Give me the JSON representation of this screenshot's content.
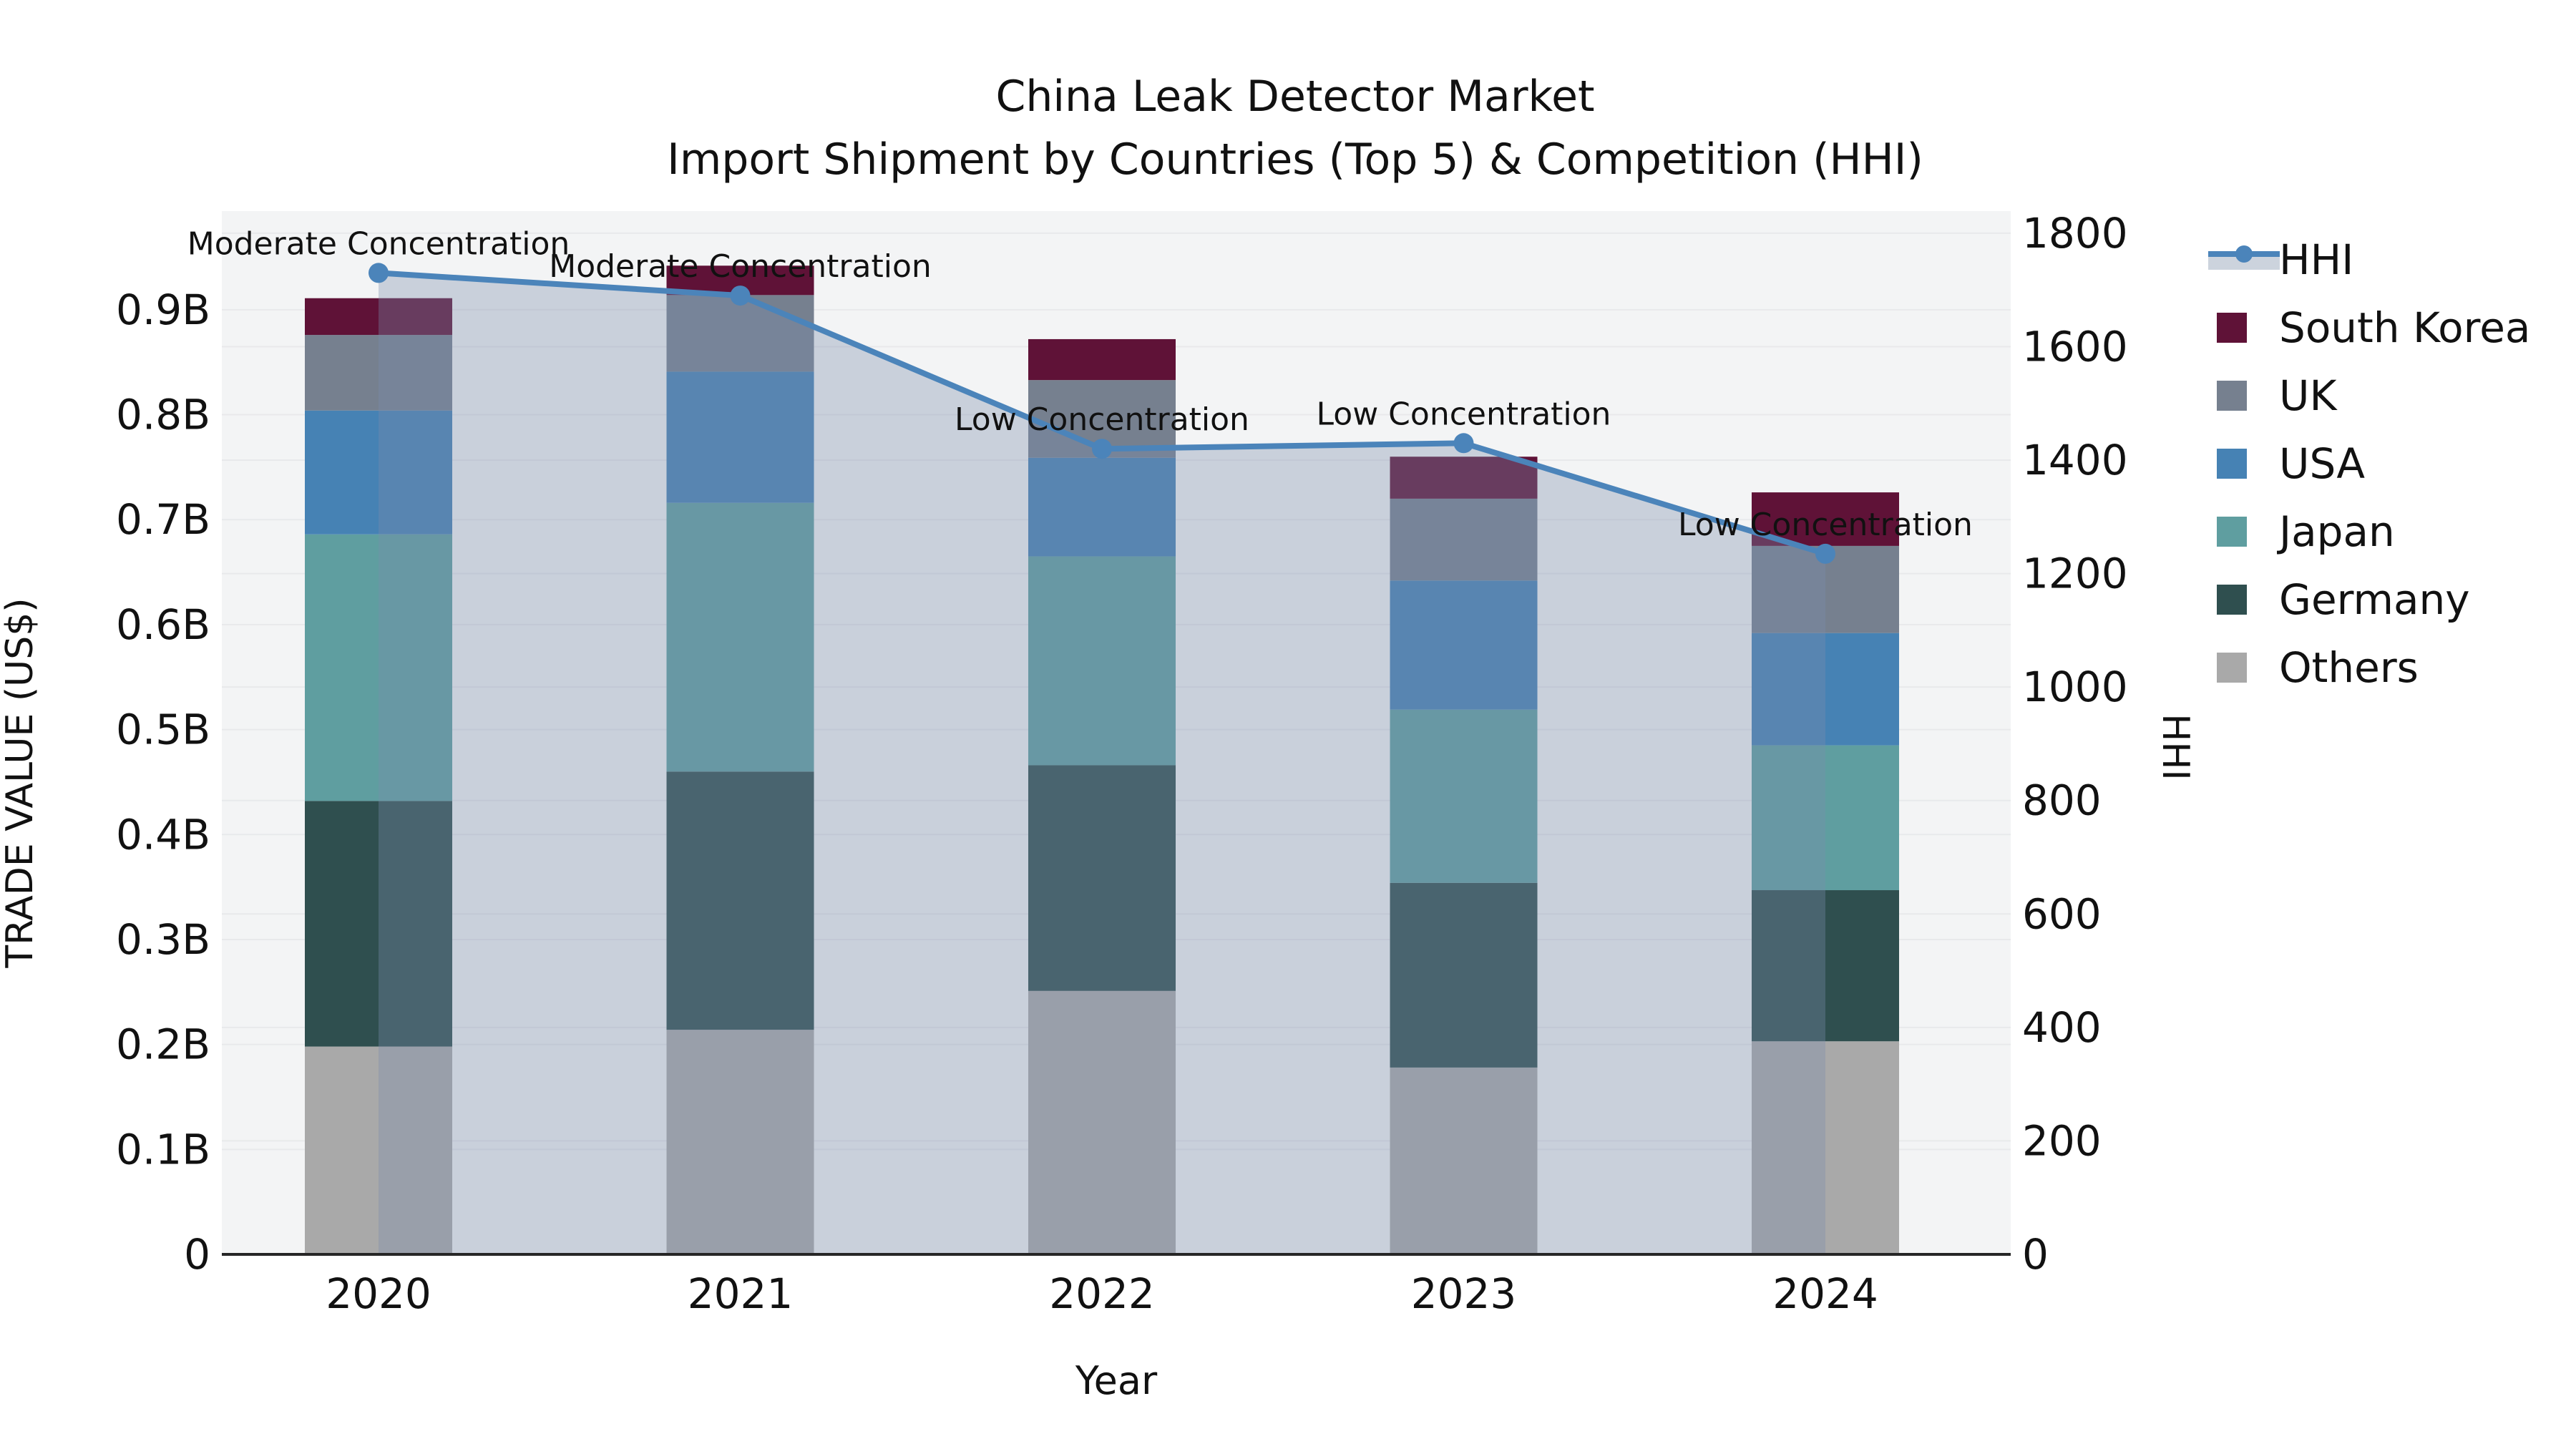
{
  "title": {
    "line1": "China Leak Detector Market",
    "line2": "Import Shipment by Countries (Top 5) & Competition (HHI)"
  },
  "axes": {
    "y_left_label": "TRADE VALUE (US$)",
    "y_right_label": "HHI",
    "x_label": "Year"
  },
  "legend": {
    "items": [
      {
        "label": "HHI",
        "type": "line",
        "color": "#4b84ba",
        "band_color": "#ccd3dd"
      },
      {
        "label": "South Korea",
        "type": "box",
        "color": "#5f1237"
      },
      {
        "label": "UK",
        "type": "box",
        "color": "#76808f"
      },
      {
        "label": "USA",
        "type": "box",
        "color": "#4682b4"
      },
      {
        "label": "Japan",
        "type": "box",
        "color": "#5f9ea0"
      },
      {
        "label": "Germany",
        "type": "box",
        "color": "#2f4f4f"
      },
      {
        "label": "Others",
        "type": "box",
        "color": "#a9a9a9"
      }
    ]
  },
  "chart_data": {
    "type": "combo-stacked-bar-line",
    "title": "China Leak Detector Market — Import Shipment by Countries (Top 5) & Competition (HHI)",
    "categories": [
      "2020",
      "2021",
      "2022",
      "2023",
      "2024"
    ],
    "bar_value_unit": "billion US$",
    "stack_series_bottom_to_top": [
      {
        "name": "Others",
        "color": "#a9a9a9",
        "values": [
          0.198,
          0.214,
          0.251,
          0.178,
          0.203
        ]
      },
      {
        "name": "Germany",
        "color": "#2f4f4f",
        "values": [
          0.234,
          0.246,
          0.215,
          0.176,
          0.144
        ]
      },
      {
        "name": "Japan",
        "color": "#5f9ea0",
        "values": [
          0.254,
          0.256,
          0.199,
          0.165,
          0.138
        ]
      },
      {
        "name": "USA",
        "color": "#4682b4",
        "values": [
          0.118,
          0.125,
          0.094,
          0.123,
          0.107
        ]
      },
      {
        "name": "UK",
        "color": "#76808f",
        "values": [
          0.072,
          0.073,
          0.074,
          0.078,
          0.083
        ]
      },
      {
        "name": "South Korea",
        "color": "#5f1237",
        "values": [
          0.035,
          0.028,
          0.039,
          0.04,
          0.051
        ]
      }
    ],
    "bar_totals": [
      0.911,
      0.942,
      0.872,
      0.76,
      0.726
    ],
    "line_series": {
      "name": "HHI",
      "color": "#4b84ba",
      "area_fill_color": "rgba(122,141,172,0.35)",
      "values": [
        1730,
        1690,
        1420,
        1430,
        1235
      ]
    },
    "annotations": [
      {
        "category": "2020",
        "text": "Moderate Concentration"
      },
      {
        "category": "2021",
        "text": "Moderate Concentration"
      },
      {
        "category": "2022",
        "text": "Low Concentration"
      },
      {
        "category": "2023",
        "text": "Low Concentration"
      },
      {
        "category": "2024",
        "text": "Low Concentration"
      }
    ],
    "y_left_axis": {
      "label": "TRADE VALUE (US$)",
      "tick_values": [
        0,
        0.1,
        0.2,
        0.3,
        0.4,
        0.5,
        0.6,
        0.7,
        0.8,
        0.9
      ],
      "tick_labels": [
        "0",
        "0.1B",
        "0.2B",
        "0.3B",
        "0.4B",
        "0.5B",
        "0.6B",
        "0.7B",
        "0.8B",
        "0.9B"
      ],
      "min": 0,
      "max": 0.994
    },
    "y_right_axis": {
      "label": "HHI",
      "tick_values": [
        0,
        200,
        400,
        600,
        800,
        1000,
        1200,
        1400,
        1600,
        1800
      ],
      "min": 0,
      "max": 1839
    },
    "x_axis": {
      "label": "Year"
    },
    "grid": true,
    "plot_bg_color": "#f3f4f5",
    "gridline_color": "#e8e9eb"
  }
}
